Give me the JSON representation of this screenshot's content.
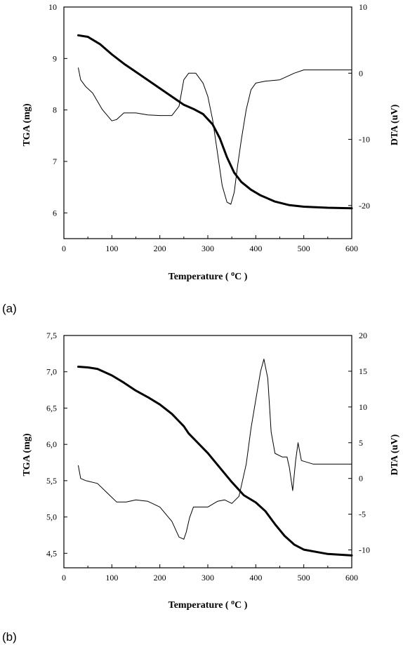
{
  "chart_data": [
    {
      "type": "line",
      "panel_label": "(a)",
      "xlabel": "Temperature ( ",
      "xlabel_sup": "o",
      "xlabel_tail": "C )",
      "ylabel": "TGA (mg)",
      "y2label": "DTA (uV)",
      "xlim": [
        0,
        600
      ],
      "ylim": [
        5.5,
        10
      ],
      "y2lim": [
        -25,
        10
      ],
      "xticks": [
        0,
        100,
        200,
        300,
        400,
        500,
        600
      ],
      "yticks": [
        6,
        7,
        8,
        9,
        10
      ],
      "y2ticks": [
        -20,
        -10,
        0,
        10
      ],
      "series": [
        {
          "axis": "left",
          "style": "thick",
          "x": [
            30,
            50,
            75,
            100,
            125,
            150,
            175,
            200,
            225,
            250,
            270,
            290,
            310,
            325,
            340,
            355,
            370,
            390,
            410,
            440,
            470,
            500,
            550,
            600
          ],
          "y": [
            9.45,
            9.42,
            9.28,
            9.08,
            8.9,
            8.74,
            8.58,
            8.42,
            8.26,
            8.1,
            8.02,
            7.92,
            7.72,
            7.45,
            7.08,
            6.78,
            6.6,
            6.45,
            6.34,
            6.22,
            6.15,
            6.12,
            6.1,
            6.09
          ]
        },
        {
          "axis": "right",
          "style": "thin",
          "x": [
            30,
            35,
            45,
            60,
            80,
            100,
            110,
            125,
            150,
            175,
            200,
            225,
            240,
            250,
            260,
            275,
            290,
            300,
            310,
            320,
            330,
            340,
            348,
            355,
            362,
            370,
            380,
            390,
            400,
            420,
            450,
            480,
            500,
            550,
            600
          ],
          "y": [
            0.8,
            -1.0,
            -2.0,
            -3.0,
            -5.5,
            -7.2,
            -7.0,
            -6.0,
            -6.0,
            -6.3,
            -6.4,
            -6.4,
            -5.0,
            -1.0,
            0.0,
            0.0,
            -1.5,
            -3.5,
            -7.0,
            -12.0,
            -17.0,
            -19.5,
            -19.8,
            -18.0,
            -14.0,
            -10.0,
            -5.5,
            -2.5,
            -1.5,
            -1.2,
            -1.0,
            0.0,
            0.5,
            0.5,
            0.5
          ]
        }
      ]
    },
    {
      "type": "line",
      "panel_label": "(b)",
      "xlabel": "Temperature ( ",
      "xlabel_sup": "o",
      "xlabel_tail": "C )",
      "ylabel": "TGA (mg)",
      "y2label": "DTA (uV)",
      "xlim": [
        0,
        600
      ],
      "ylim": [
        4.3,
        7.5
      ],
      "y2lim": [
        -12.5,
        20
      ],
      "xticks": [
        0,
        100,
        200,
        300,
        400,
        500,
        600
      ],
      "yticks": [
        "4,5",
        "5,0",
        "5,5",
        "6,0",
        "6,5",
        "7,0",
        "7,5"
      ],
      "ytick_values": [
        4.5,
        5.0,
        5.5,
        6.0,
        6.5,
        7.0,
        7.5
      ],
      "y2ticks": [
        -10,
        -5,
        0,
        5,
        10,
        15,
        20
      ],
      "series": [
        {
          "axis": "left",
          "style": "thick",
          "x": [
            30,
            50,
            70,
            100,
            125,
            150,
            175,
            200,
            225,
            250,
            260,
            275,
            300,
            325,
            350,
            375,
            400,
            420,
            440,
            460,
            475,
            480,
            500,
            550,
            600
          ],
          "y": [
            7.07,
            7.06,
            7.04,
            6.95,
            6.85,
            6.74,
            6.65,
            6.55,
            6.42,
            6.25,
            6.15,
            6.05,
            5.88,
            5.68,
            5.48,
            5.3,
            5.2,
            5.08,
            4.9,
            4.74,
            4.65,
            4.62,
            4.55,
            4.49,
            4.47
          ]
        },
        {
          "axis": "right",
          "style": "thin",
          "x": [
            30,
            35,
            45,
            70,
            90,
            110,
            130,
            150,
            175,
            200,
            225,
            240,
            250,
            255,
            262,
            270,
            280,
            300,
            320,
            335,
            350,
            365,
            380,
            390,
            400,
            410,
            417,
            425,
            432,
            440,
            455,
            465,
            470,
            477,
            483,
            488,
            495,
            520,
            550,
            580,
            600
          ],
          "y": [
            1.8,
            0.0,
            -0.3,
            -0.7,
            -2.0,
            -3.3,
            -3.3,
            -3.0,
            -3.2,
            -4.0,
            -6.0,
            -8.2,
            -8.5,
            -7.5,
            -5.5,
            -4.0,
            -4.0,
            -4.0,
            -3.2,
            -3.0,
            -3.5,
            -2.5,
            2.0,
            7.0,
            11.0,
            15.0,
            16.7,
            14.0,
            6.5,
            3.5,
            3.0,
            3.0,
            1.5,
            -1.7,
            2.5,
            5.0,
            2.5,
            2.0,
            2.0,
            2.0,
            2.0
          ]
        }
      ]
    }
  ]
}
